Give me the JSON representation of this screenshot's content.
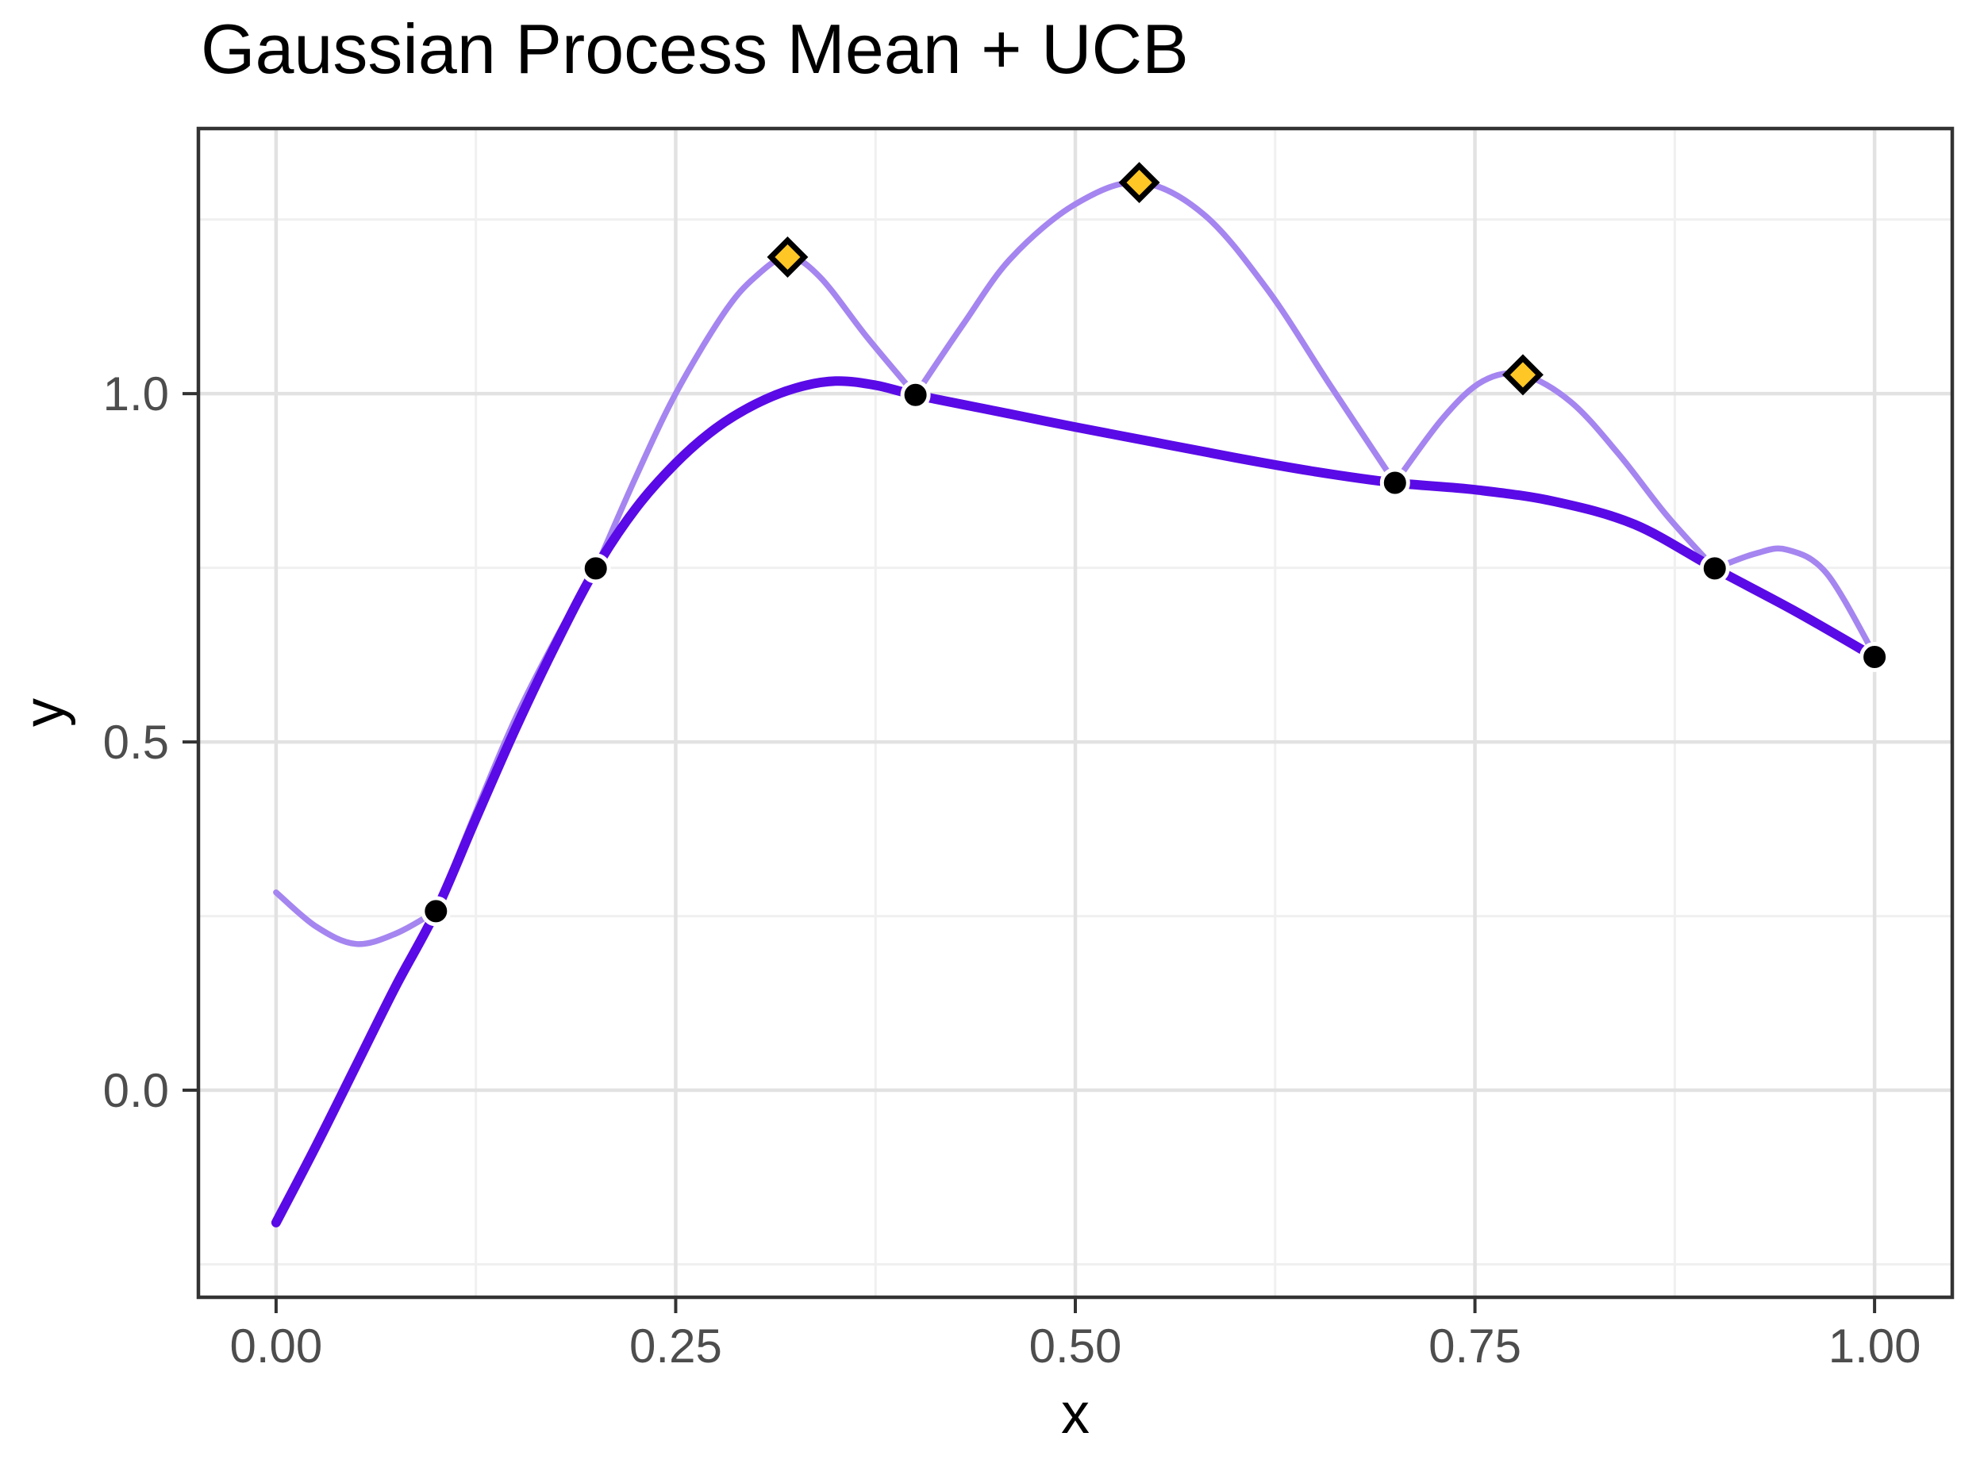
{
  "chart_data": {
    "type": "line",
    "title": "Gaussian Process Mean + UCB",
    "xlabel": "x",
    "ylabel": "y",
    "xlim": [
      -0.0486,
      1.0486
    ],
    "ylim": [
      -0.2972,
      1.3805
    ],
    "grid": true,
    "legend": false,
    "x_major_ticks": [
      0,
      0.25,
      0.5,
      0.75,
      1.0
    ],
    "x_tick_labels": [
      "0.00",
      "0.25",
      "0.50",
      "0.75",
      "1.00"
    ],
    "x_minor_ticks": [
      0.125,
      0.375,
      0.625,
      0.875
    ],
    "y_major_ticks": [
      0,
      0.5,
      1.0
    ],
    "y_tick_labels": [
      "0.0",
      "0.5",
      "1.0"
    ],
    "y_minor_ticks": [
      -0.25,
      0.25,
      0.75,
      1.25
    ],
    "colors": {
      "mean_line": "#5A0AE6",
      "ucb_line": "#A585F0",
      "observation": "#000000",
      "observation_halo": "#FFFFFF",
      "maxima_fill": "#FFC725",
      "maxima_stroke": "#000000",
      "grid_major": "#E2E2E2",
      "grid_minor": "#F0F0F0",
      "panel_border": "#333333",
      "tick_mark": "#333333",
      "tick_text": "#4D4D4D"
    },
    "series": [
      {
        "name": "GP mean",
        "style": "thick",
        "points": [
          [
            0,
            -0.19
          ],
          [
            0.025,
            -0.08
          ],
          [
            0.05,
            0.035
          ],
          [
            0.075,
            0.15
          ],
          [
            0.1,
            0.257
          ],
          [
            0.125,
            0.39
          ],
          [
            0.15,
            0.52
          ],
          [
            0.175,
            0.64
          ],
          [
            0.2,
            0.749
          ],
          [
            0.225,
            0.835
          ],
          [
            0.25,
            0.9
          ],
          [
            0.275,
            0.95
          ],
          [
            0.3,
            0.985
          ],
          [
            0.325,
            1.008
          ],
          [
            0.35,
            1.018
          ],
          [
            0.375,
            1.012
          ],
          [
            0.4,
            0.998
          ],
          [
            0.45,
            0.975
          ],
          [
            0.5,
            0.952
          ],
          [
            0.55,
            0.93
          ],
          [
            0.6,
            0.908
          ],
          [
            0.65,
            0.888
          ],
          [
            0.7,
            0.872
          ],
          [
            0.75,
            0.862
          ],
          [
            0.8,
            0.845
          ],
          [
            0.85,
            0.812
          ],
          [
            0.9,
            0.749
          ],
          [
            0.95,
            0.688
          ],
          [
            1,
            0.622
          ]
        ]
      },
      {
        "name": "UCB",
        "style": "thin",
        "segments": [
          [
            [
              0,
              0.284
            ],
            [
              0.025,
              0.235
            ],
            [
              0.05,
              0.21
            ],
            [
              0.075,
              0.225
            ],
            [
              0.1,
              0.257
            ]
          ],
          [
            [
              0.1,
              0.257
            ],
            [
              0.125,
              0.4
            ],
            [
              0.15,
              0.535
            ],
            [
              0.175,
              0.648
            ],
            [
              0.2,
              0.749
            ]
          ],
          [
            [
              0.2,
              0.749
            ],
            [
              0.225,
              0.88
            ],
            [
              0.25,
              1.0
            ],
            [
              0.28,
              1.115
            ],
            [
              0.3,
              1.168
            ],
            [
              0.32,
              1.196
            ],
            [
              0.34,
              1.168
            ],
            [
              0.37,
              1.08
            ],
            [
              0.4,
              0.998
            ]
          ],
          [
            [
              0.4,
              0.998
            ],
            [
              0.43,
              1.1
            ],
            [
              0.46,
              1.195
            ],
            [
              0.5,
              1.272
            ],
            [
              0.54,
              1.303
            ],
            [
              0.58,
              1.258
            ],
            [
              0.62,
              1.15
            ],
            [
              0.66,
              1.01
            ],
            [
              0.7,
              0.872
            ]
          ],
          [
            [
              0.7,
              0.872
            ],
            [
              0.73,
              0.965
            ],
            [
              0.755,
              1.018
            ],
            [
              0.78,
              1.027
            ],
            [
              0.81,
              0.988
            ],
            [
              0.84,
              0.913
            ],
            [
              0.87,
              0.825
            ],
            [
              0.9,
              0.749
            ]
          ],
          [
            [
              0.9,
              0.749
            ],
            [
              0.925,
              0.77
            ],
            [
              0.945,
              0.776
            ],
            [
              0.97,
              0.742
            ],
            [
              1,
              0.625
            ]
          ]
        ]
      }
    ],
    "observations": [
      [
        0.1,
        0.257
      ],
      [
        0.2,
        0.749
      ],
      [
        0.4,
        0.998
      ],
      [
        0.7,
        0.872
      ],
      [
        0.9,
        0.749
      ],
      [
        1.0,
        0.622
      ]
    ],
    "ucb_maxima": [
      [
        0.32,
        1.196
      ],
      [
        0.54,
        1.303
      ],
      [
        0.78,
        1.027
      ]
    ]
  }
}
